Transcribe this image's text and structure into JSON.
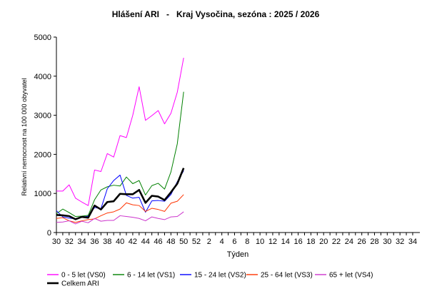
{
  "chart_data": {
    "type": "line",
    "title": "Hlášení ARI   -   Kraj Vysočina, sezóna : 2025 / 2026",
    "xlabel": "Týden",
    "ylabel": "Relativní nemocnost na 100 000 obyvatel",
    "ylim": [
      0,
      5000
    ],
    "yticks": [
      "0",
      "1000",
      "2000",
      "3000",
      "4000",
      "5000"
    ],
    "x": [
      30,
      31,
      32,
      33,
      34,
      35,
      36,
      37,
      38,
      39,
      40,
      41,
      42,
      43,
      44,
      45,
      46,
      47,
      48,
      49,
      50
    ],
    "xtick_labels": [
      "30",
      "32",
      "34",
      "36",
      "38",
      "40",
      "42",
      "44",
      "46",
      "48",
      "50",
      "52",
      "2",
      "4",
      "6",
      "8",
      "10",
      "12",
      "14",
      "16",
      "18",
      "20",
      "22",
      "24",
      "26",
      "28",
      "30",
      "32",
      "34"
    ],
    "grid": false,
    "series": [
      {
        "name": "0 - 5 let (VS0)",
        "color": "#ff00ff",
        "width": 1,
        "values": [
          1060,
          1060,
          1220,
          880,
          780,
          690,
          1600,
          1560,
          2020,
          1930,
          2480,
          2430,
          3000,
          3730,
          2870,
          2990,
          3120,
          2780,
          3050,
          3590,
          4470
        ]
      },
      {
        "name": "6 - 14 let (VS1)",
        "color": "#008000",
        "width": 1,
        "values": [
          480,
          600,
          510,
          410,
          420,
          440,
          840,
          1090,
          1170,
          1210,
          1190,
          1420,
          1250,
          1330,
          960,
          1200,
          1260,
          1110,
          1550,
          2270,
          3600
        ]
      },
      {
        "name": "15 - 24 let (VS2)",
        "color": "#0000ff",
        "width": 1,
        "values": [
          560,
          400,
          370,
          350,
          390,
          420,
          640,
          610,
          1120,
          1330,
          1470,
          950,
          880,
          900,
          520,
          810,
          820,
          800,
          970,
          1300,
          1580
        ]
      },
      {
        "name": "25 - 64 let (VS3)",
        "color": "#ff3300",
        "width": 1,
        "values": [
          360,
          380,
          300,
          260,
          300,
          330,
          350,
          430,
          500,
          530,
          600,
          760,
          710,
          690,
          540,
          620,
          590,
          540,
          750,
          800,
          970
        ]
      },
      {
        "name": "65 + let (VS4)",
        "color": "#cc33cc",
        "width": 1,
        "values": [
          260,
          270,
          300,
          220,
          290,
          250,
          360,
          290,
          310,
          310,
          430,
          410,
          390,
          360,
          300,
          400,
          360,
          330,
          400,
          410,
          530
        ]
      },
      {
        "name": "Celkem ARI",
        "color": "#000000",
        "width": 2.6,
        "values": [
          450,
          440,
          420,
          340,
          400,
          380,
          690,
          590,
          780,
          800,
          990,
          980,
          980,
          1090,
          760,
          940,
          920,
          830,
          1030,
          1250,
          1650
        ]
      }
    ]
  }
}
